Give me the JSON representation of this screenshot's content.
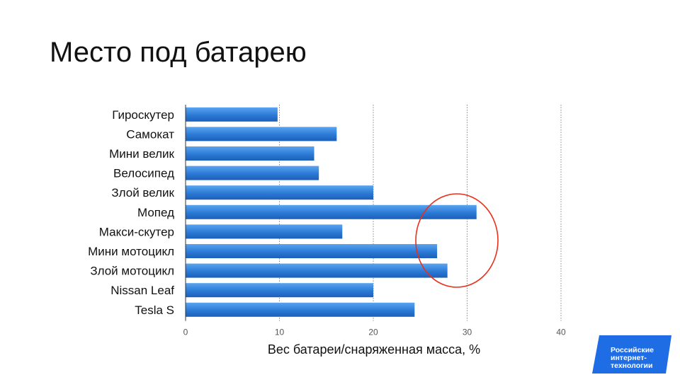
{
  "slide": {
    "title": "Место под батарею"
  },
  "chart_data": {
    "type": "bar",
    "orientation": "horizontal",
    "categories": [
      "Гироскутер",
      "Самокат",
      "Мини велик",
      "Велосипед",
      "Злой велик",
      "Мопед",
      "Макси-скутер",
      "Мини мотоцикл",
      "Злой мотоцикл",
      "Nissan Leaf",
      "Tesla S"
    ],
    "values": [
      9.8,
      16.1,
      13.7,
      14.2,
      20.0,
      31.0,
      16.7,
      26.8,
      27.9,
      20.0,
      24.4
    ],
    "xlabel": "Вес батареи/снаряженная масса, %",
    "xticks": [
      "0",
      "10",
      "20",
      "30",
      "40"
    ],
    "xlim": [
      0,
      40
    ],
    "grid": "vertical dotted",
    "bar_color": "#2b7ad6",
    "annotation": {
      "shape": "ellipse",
      "color": "#e8301c",
      "target": "Мопед, Мини мотоцикл, Злой мотоцикл"
    }
  },
  "logo": {
    "lines": [
      "Российские",
      "интернет-",
      "технологии"
    ],
    "color": "#1f6de5"
  }
}
